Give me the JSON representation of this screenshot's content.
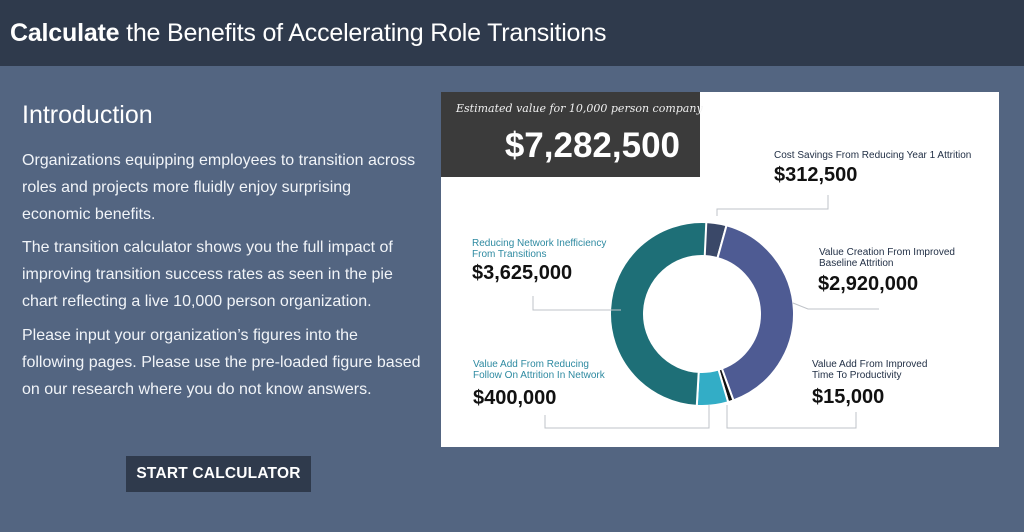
{
  "header": {
    "title_bold": "Calculate",
    "title_rest": " the Benefits of Accelerating Role Transitions"
  },
  "intro": {
    "heading": "Introduction",
    "paragraphs": [
      "Organizations equipping employees to transition across roles and projects more fluidly enjoy surprising economic benefits.",
      "The transition calculator shows you the full impact of improving transition success rates as seen in the pie chart reflecting a live 10,000 person organization.",
      "Please input your organization’s figures into the following pages. Please use the pre-loaded figure based on our research where you do not know answers."
    ]
  },
  "start_button": {
    "label": "START CALCULATOR"
  },
  "estimate": {
    "label": "Estimated value for 10,000 person company",
    "value": "$7,282,500"
  },
  "chart_data": {
    "type": "pie",
    "style": "donut",
    "categories": [
      "Cost Savings From Reducing Year 1 Attrition",
      "Value Creation From Improved Baseline Attrition",
      "Value Add From Improved Time To Productivity",
      "Value Add From Reducing Follow On Attrition In Network",
      "Reducing Network Inefficiency From Transitions"
    ],
    "values": [
      312500,
      2920000,
      15000,
      400000,
      3625000
    ],
    "value_labels": [
      "$312,500",
      "$2,920,000",
      "$15,000",
      "$400,000",
      "$3,625,000"
    ],
    "colors": [
      "#3a4868",
      "#4e5b93",
      "#111111",
      "#33adc6",
      "#1e6f77"
    ],
    "total": 7282500
  }
}
